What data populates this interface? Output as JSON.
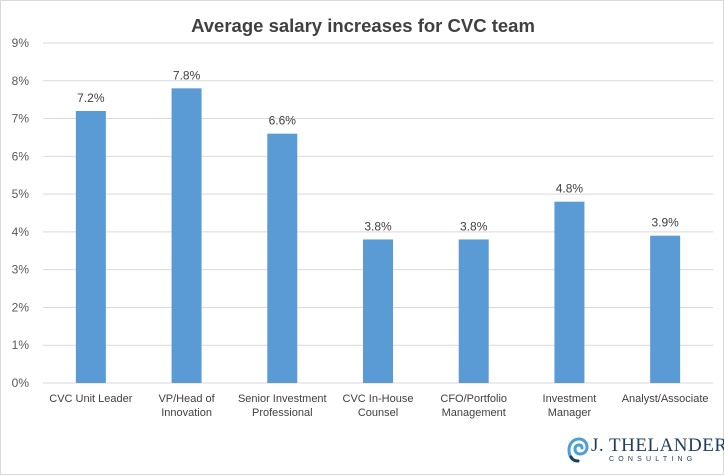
{
  "chart_data": {
    "type": "bar",
    "title": "Average salary increases for CVC team",
    "categories": [
      [
        "CVC Unit Leader"
      ],
      [
        "VP/Head of",
        "Innovation"
      ],
      [
        "Senior Investment",
        "Professional"
      ],
      [
        "CVC In-House",
        "Counsel"
      ],
      [
        "CFO/Portfolio",
        "Management"
      ],
      [
        "Investment",
        "Manager"
      ],
      [
        "Analyst/Associate"
      ]
    ],
    "values": [
      7.2,
      7.8,
      6.6,
      3.8,
      3.8,
      4.8,
      3.9
    ],
    "data_labels": [
      "7.2%",
      "7.8%",
      "6.6%",
      "3.8%",
      "3.8%",
      "4.8%",
      "3.9%"
    ],
    "y_ticks": [
      "0%",
      "1%",
      "2%",
      "3%",
      "4%",
      "5%",
      "6%",
      "7%",
      "8%",
      "9%"
    ],
    "ylim": [
      0,
      9
    ],
    "grid": true,
    "legend": "none",
    "bar_color": "#5b9bd5",
    "grid_color": "#d9d9d9"
  },
  "logo": {
    "name": "J. THELANDER",
    "subtitle": "CONSULTING",
    "color": "#1f3d5c",
    "accent": "#4a9fd4"
  }
}
